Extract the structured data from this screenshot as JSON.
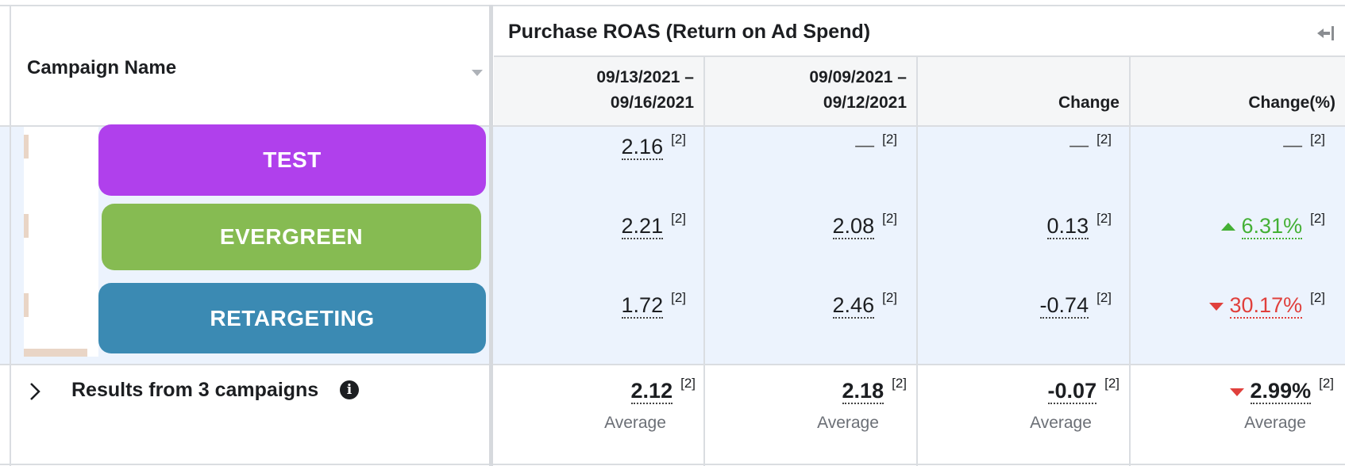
{
  "table": {
    "name_header": "Campaign Name",
    "group_header": "Purchase ROAS (Return on Ad Spend)",
    "columns": [
      {
        "line1": "09/13/2021 –",
        "line2": "09/16/2021"
      },
      {
        "line1": "09/09/2021 –",
        "line2": "09/12/2021"
      },
      {
        "line1": "",
        "line2": "Change"
      },
      {
        "line1": "",
        "line2": "Change(%)"
      }
    ]
  },
  "rows": [
    {
      "name": "TEST",
      "color": "#b040ec",
      "current": "2.16",
      "previous": "—",
      "change": "—",
      "change_pct": "—",
      "ref": "[2]"
    },
    {
      "name": "EVERGREEN",
      "color": "#86bb52",
      "current": "2.21",
      "previous": "2.08",
      "change": "0.13",
      "change_pct": "6.31%",
      "ref": "[2]"
    },
    {
      "name": "RETARGETING",
      "color": "#3b8ab3",
      "current": "1.72",
      "previous": "2.46",
      "change": "-0.74",
      "change_pct": "30.17%",
      "ref": "[2]"
    }
  ],
  "footer": {
    "label": "Results from 3 campaigns",
    "current": "2.12",
    "previous": "2.18",
    "change": "-0.07",
    "change_pct": "2.99%",
    "ref": "[2]",
    "sub_label": "Average"
  },
  "colors": {
    "positive": "#44b035",
    "negative": "#e0403c",
    "header_bg": "#f5f6f7",
    "body_bg": "#ecf3fd"
  }
}
